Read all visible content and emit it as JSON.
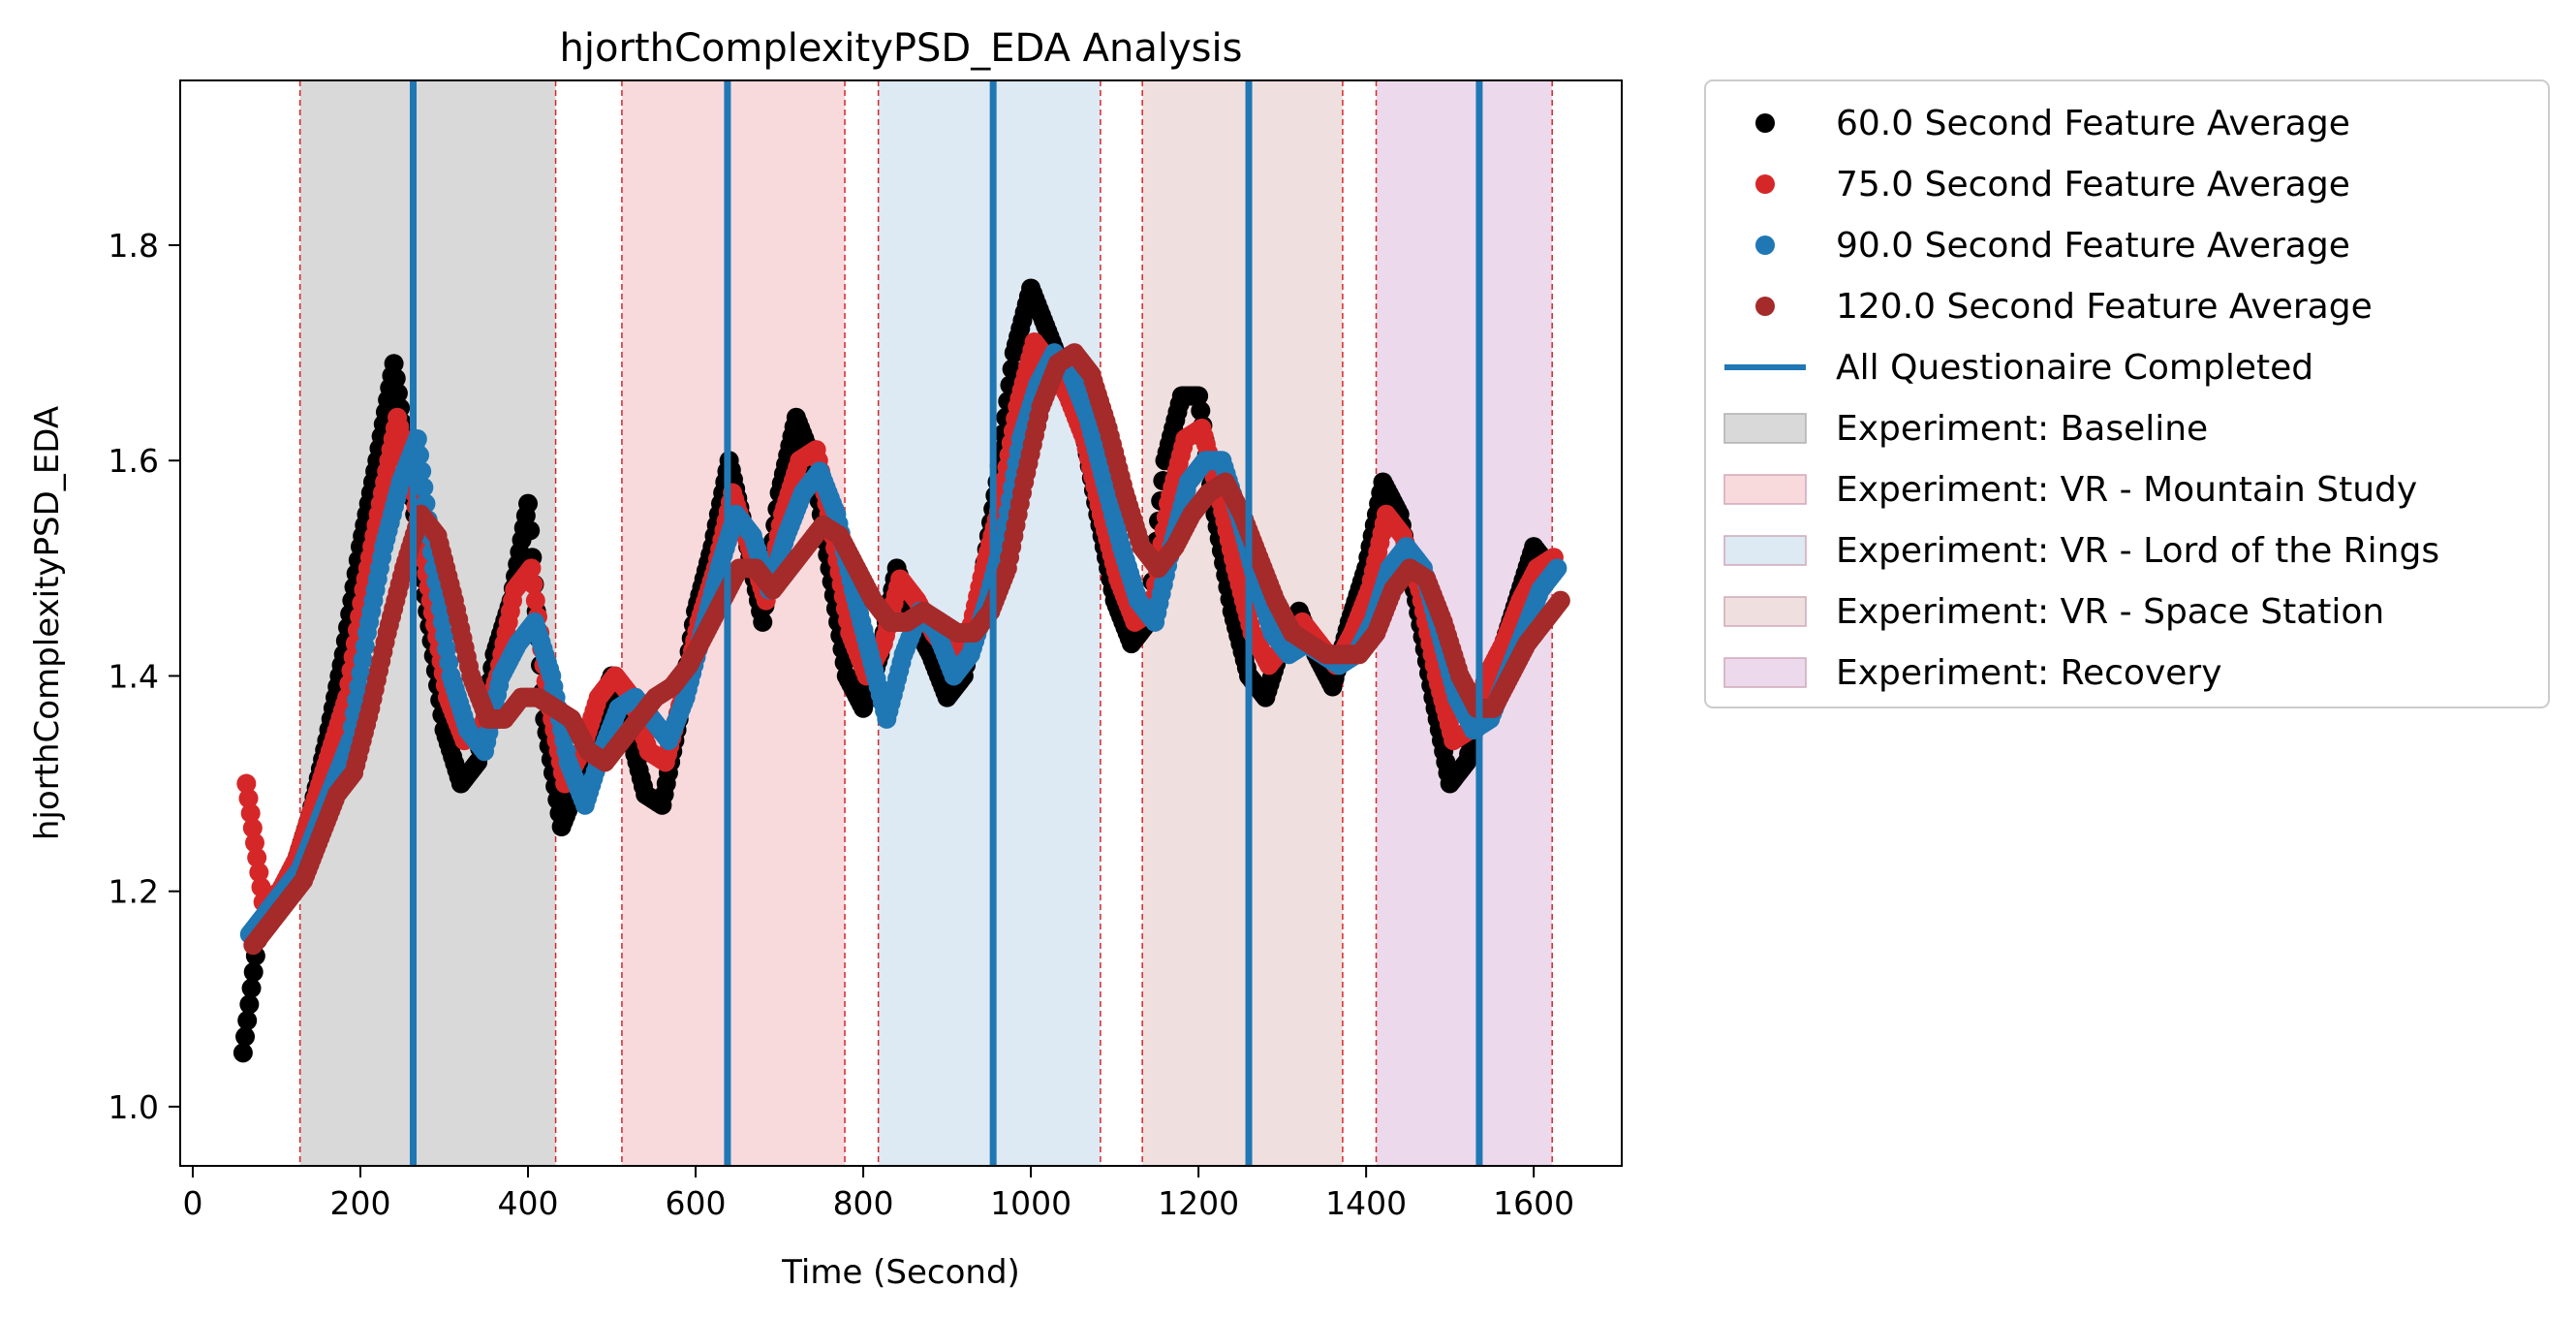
{
  "chart_data": {
    "type": "scatter",
    "title": "hjorthComplexityPSD_EDA Analysis",
    "xlabel": "Time (Second)",
    "ylabel": "hjorthComplexityPSD_EDA",
    "xlim": [
      -15,
      1705
    ],
    "ylim": [
      0.945,
      1.953
    ],
    "xticks": [
      0,
      200,
      400,
      600,
      800,
      1000,
      1200,
      1400,
      1600
    ],
    "yticks": [
      1.0,
      1.2,
      1.4,
      1.6,
      1.8
    ],
    "ytick_labels": [
      "1.0",
      "1.2",
      "1.4",
      "1.6",
      "1.8"
    ],
    "grid": false,
    "legend_placement": "outside-top-right",
    "series": [
      {
        "name": "60.0 Second Feature Average",
        "color": "#000000",
        "offset": 0,
        "x": [
          60,
          80,
          100,
          120,
          140,
          160,
          180,
          200,
          220,
          240,
          260,
          280,
          300,
          320,
          340,
          360,
          380,
          400,
          420,
          440,
          460,
          480,
          500,
          520,
          540,
          560,
          580,
          600,
          620,
          640,
          660,
          680,
          700,
          720,
          740,
          760,
          780,
          800,
          820,
          840,
          860,
          880,
          900,
          920,
          940,
          960,
          980,
          1000,
          1020,
          1040,
          1060,
          1080,
          1100,
          1120,
          1140,
          1160,
          1180,
          1200,
          1220,
          1240,
          1260,
          1280,
          1300,
          1320,
          1340,
          1360,
          1380,
          1400,
          1420,
          1440,
          1460,
          1480,
          1500,
          1520,
          1540,
          1560,
          1580,
          1600,
          1620
        ],
        "y": [
          1.05,
          1.17,
          1.19,
          1.22,
          1.27,
          1.34,
          1.42,
          1.52,
          1.6,
          1.69,
          1.58,
          1.46,
          1.35,
          1.3,
          1.32,
          1.42,
          1.47,
          1.56,
          1.36,
          1.26,
          1.3,
          1.36,
          1.4,
          1.35,
          1.29,
          1.28,
          1.36,
          1.46,
          1.52,
          1.6,
          1.53,
          1.45,
          1.57,
          1.64,
          1.6,
          1.5,
          1.4,
          1.37,
          1.42,
          1.5,
          1.45,
          1.42,
          1.38,
          1.4,
          1.48,
          1.58,
          1.7,
          1.76,
          1.72,
          1.68,
          1.64,
          1.55,
          1.47,
          1.43,
          1.45,
          1.6,
          1.66,
          1.66,
          1.55,
          1.46,
          1.4,
          1.38,
          1.43,
          1.46,
          1.42,
          1.39,
          1.45,
          1.5,
          1.58,
          1.55,
          1.47,
          1.38,
          1.3,
          1.32,
          1.38,
          1.42,
          1.47,
          1.52,
          1.5
        ]
      },
      {
        "name": "75.0 Second Feature Average",
        "color": "#d62728",
        "offset": 4,
        "x": [
          60,
          80,
          100,
          120,
          140,
          160,
          180,
          200,
          220,
          240,
          260,
          280,
          300,
          320,
          340,
          360,
          380,
          400,
          420,
          440,
          460,
          480,
          500,
          520,
          540,
          560,
          580,
          600,
          620,
          640,
          660,
          680,
          700,
          720,
          740,
          760,
          780,
          800,
          820,
          840,
          860,
          880,
          900,
          920,
          940,
          960,
          980,
          1000,
          1020,
          1040,
          1060,
          1080,
          1100,
          1120,
          1140,
          1160,
          1180,
          1200,
          1220,
          1240,
          1260,
          1280,
          1300,
          1320,
          1340,
          1360,
          1380,
          1400,
          1420,
          1440,
          1460,
          1480,
          1500,
          1520,
          1540,
          1560,
          1580,
          1600,
          1620
        ],
        "y": [
          1.3,
          1.19,
          1.2,
          1.23,
          1.28,
          1.33,
          1.38,
          1.48,
          1.56,
          1.64,
          1.57,
          1.47,
          1.38,
          1.34,
          1.35,
          1.4,
          1.48,
          1.5,
          1.38,
          1.3,
          1.33,
          1.38,
          1.4,
          1.38,
          1.33,
          1.32,
          1.38,
          1.45,
          1.5,
          1.57,
          1.52,
          1.47,
          1.55,
          1.6,
          1.61,
          1.53,
          1.44,
          1.4,
          1.43,
          1.49,
          1.47,
          1.44,
          1.42,
          1.43,
          1.5,
          1.56,
          1.65,
          1.71,
          1.69,
          1.66,
          1.62,
          1.55,
          1.49,
          1.45,
          1.46,
          1.56,
          1.62,
          1.63,
          1.57,
          1.5,
          1.44,
          1.41,
          1.43,
          1.45,
          1.43,
          1.41,
          1.44,
          1.48,
          1.55,
          1.53,
          1.48,
          1.4,
          1.34,
          1.35,
          1.4,
          1.43,
          1.47,
          1.5,
          1.51
        ]
      },
      {
        "name": "90.0 Second Feature Average",
        "color": "#1f77b4",
        "offset": 8,
        "x": [
          60,
          80,
          100,
          120,
          140,
          160,
          180,
          200,
          220,
          240,
          260,
          280,
          300,
          320,
          340,
          360,
          380,
          400,
          420,
          440,
          460,
          480,
          500,
          520,
          540,
          560,
          580,
          600,
          620,
          640,
          660,
          680,
          700,
          720,
          740,
          760,
          780,
          800,
          820,
          840,
          860,
          880,
          900,
          920,
          940,
          960,
          980,
          1000,
          1020,
          1040,
          1060,
          1080,
          1100,
          1120,
          1140,
          1160,
          1180,
          1200,
          1220,
          1240,
          1260,
          1280,
          1300,
          1320,
          1340,
          1360,
          1380,
          1400,
          1420,
          1440,
          1460,
          1480,
          1500,
          1520,
          1540,
          1560,
          1580,
          1600,
          1620
        ],
        "y": [
          1.16,
          1.18,
          1.2,
          1.22,
          1.26,
          1.3,
          1.34,
          1.44,
          1.52,
          1.58,
          1.62,
          1.5,
          1.4,
          1.35,
          1.33,
          1.4,
          1.43,
          1.45,
          1.4,
          1.32,
          1.28,
          1.33,
          1.37,
          1.38,
          1.36,
          1.34,
          1.38,
          1.44,
          1.5,
          1.55,
          1.53,
          1.48,
          1.53,
          1.57,
          1.59,
          1.55,
          1.48,
          1.42,
          1.36,
          1.42,
          1.46,
          1.44,
          1.4,
          1.42,
          1.47,
          1.53,
          1.62,
          1.67,
          1.7,
          1.68,
          1.64,
          1.58,
          1.52,
          1.47,
          1.45,
          1.52,
          1.58,
          1.6,
          1.6,
          1.55,
          1.49,
          1.44,
          1.42,
          1.43,
          1.42,
          1.41,
          1.42,
          1.45,
          1.5,
          1.52,
          1.5,
          1.44,
          1.38,
          1.35,
          1.36,
          1.4,
          1.44,
          1.48,
          1.5
        ]
      },
      {
        "name": "120.0 Second Feature Average",
        "color": "#a52a2a",
        "offset": 12,
        "x": [
          60,
          80,
          100,
          120,
          140,
          160,
          180,
          200,
          220,
          240,
          260,
          280,
          300,
          320,
          340,
          360,
          380,
          400,
          420,
          440,
          460,
          480,
          500,
          520,
          540,
          560,
          580,
          600,
          620,
          640,
          660,
          680,
          700,
          720,
          740,
          760,
          780,
          800,
          820,
          840,
          860,
          880,
          900,
          920,
          940,
          960,
          980,
          1000,
          1020,
          1040,
          1060,
          1080,
          1100,
          1120,
          1140,
          1160,
          1180,
          1200,
          1220,
          1240,
          1260,
          1280,
          1300,
          1320,
          1340,
          1360,
          1380,
          1400,
          1420,
          1440,
          1460,
          1480,
          1500,
          1520,
          1540,
          1560,
          1580,
          1600,
          1620
        ],
        "y": [
          1.15,
          1.17,
          1.19,
          1.21,
          1.25,
          1.29,
          1.31,
          1.37,
          1.44,
          1.5,
          1.55,
          1.53,
          1.47,
          1.4,
          1.36,
          1.36,
          1.38,
          1.38,
          1.37,
          1.36,
          1.33,
          1.32,
          1.34,
          1.36,
          1.38,
          1.39,
          1.41,
          1.44,
          1.47,
          1.5,
          1.5,
          1.48,
          1.5,
          1.52,
          1.54,
          1.53,
          1.5,
          1.47,
          1.45,
          1.45,
          1.46,
          1.45,
          1.44,
          1.44,
          1.46,
          1.5,
          1.58,
          1.65,
          1.69,
          1.7,
          1.68,
          1.63,
          1.57,
          1.52,
          1.5,
          1.52,
          1.55,
          1.57,
          1.58,
          1.55,
          1.51,
          1.47,
          1.44,
          1.43,
          1.42,
          1.42,
          1.42,
          1.44,
          1.48,
          1.5,
          1.49,
          1.45,
          1.4,
          1.37,
          1.37,
          1.4,
          1.43,
          1.45,
          1.47
        ]
      }
    ],
    "questionnaire_lines": {
      "name": "All Questionaire Completed",
      "color": "#1f77b4",
      "x": [
        263,
        638,
        955,
        1260,
        1535
      ]
    },
    "phases": [
      {
        "name": "Experiment: Baseline",
        "color": "#d9d9d9",
        "start": 128,
        "end": 433
      },
      {
        "name": "Experiment: VR - Mountain Study",
        "color": "#f8dadd",
        "start": 512,
        "end": 778
      },
      {
        "name": "Experiment: VR - Lord of the Rings",
        "color": "#dde9f3",
        "start": 818,
        "end": 1083
      },
      {
        "name": "Experiment: VR - Space Station",
        "color": "#f0dfdf",
        "start": 1133,
        "end": 1372
      },
      {
        "name": "Experiment: Recovery",
        "color": "#ecdaec",
        "start": 1412,
        "end": 1622
      }
    ]
  },
  "legend": {
    "items": [
      {
        "label": "60.0 Second Feature Average",
        "kind": "dot",
        "color": "#000000"
      },
      {
        "label": "75.0 Second Feature Average",
        "kind": "dot",
        "color": "#d62728"
      },
      {
        "label": "90.0 Second Feature Average",
        "kind": "dot",
        "color": "#1f77b4"
      },
      {
        "label": "120.0 Second Feature Average",
        "kind": "dot",
        "color": "#a52a2a"
      },
      {
        "label": "All Questionaire Completed",
        "kind": "line",
        "color": "#1f77b4"
      },
      {
        "label": "Experiment: Baseline",
        "kind": "patch",
        "color": "#d9d9d9"
      },
      {
        "label": "Experiment: VR - Mountain Study",
        "kind": "patch",
        "color": "#f8dadd"
      },
      {
        "label": "Experiment: VR - Lord of the Rings",
        "kind": "patch",
        "color": "#dde9f3"
      },
      {
        "label": "Experiment: VR - Space Station",
        "kind": "patch",
        "color": "#f0dfdf"
      },
      {
        "label": "Experiment: Recovery",
        "kind": "patch",
        "color": "#ecdaec"
      }
    ]
  }
}
